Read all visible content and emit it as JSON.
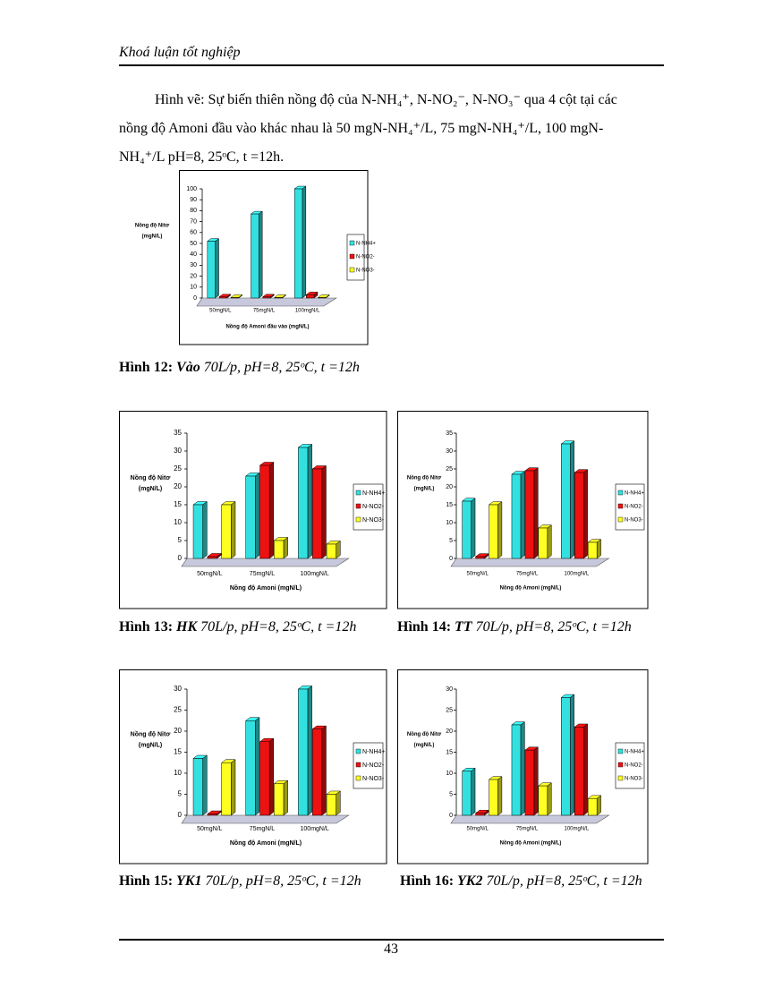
{
  "header": "Khoá luận tốt nghiệp",
  "intro": "Hình vẽ: Sự biến thiên nồng độ của N-NH₄⁺, N-NO₂⁻, N-NO₃⁻ qua 4 cột tại các nồng độ Amoni đầu vào khác nhau là 50 mgN-NH₄⁺/L, 75 mgN-NH₄⁺/L, 100 mgN-NH₄⁺/L pH=8, 25ᵒC, t =12h.",
  "chart_data": [
    {
      "type": "bar",
      "ylabel": [
        "Nồng độ Nitơ",
        "(mgN/L)"
      ],
      "xlabel": "Nồng độ Amoni đầu vào (mgN/L)",
      "categories": [
        "50mgN/L",
        "75mgN/L",
        "100mgN/L"
      ],
      "series": [
        {
          "name": "N-NH4+",
          "color": "#33e0e0",
          "values": [
            52,
            77,
            100
          ]
        },
        {
          "name": "N-NO2-",
          "color": "#ee1111",
          "values": [
            1,
            1,
            3
          ]
        },
        {
          "name": "N-NO3-",
          "color": "#ffff22",
          "values": [
            0.5,
            0.5,
            0.5
          ]
        }
      ],
      "ylim": [
        0,
        100
      ],
      "yticks": [
        0,
        10,
        20,
        30,
        40,
        50,
        60,
        70,
        80,
        90,
        100
      ]
    },
    {
      "type": "bar",
      "ylabel": [
        "Nồng độ Nitơ",
        "(mgN/L)"
      ],
      "xlabel": "Nồng độ Amoni (mgN/L)",
      "categories": [
        "50mgN/L",
        "75mgN/L",
        "100mgN/L"
      ],
      "series": [
        {
          "name": "N-NH4+",
          "color": "#33e0e0",
          "values": [
            15,
            23,
            31
          ]
        },
        {
          "name": "N-NO2-",
          "color": "#ee1111",
          "values": [
            0.5,
            26,
            25
          ]
        },
        {
          "name": "N-NO3-",
          "color": "#ffff22",
          "values": [
            15,
            5,
            4
          ]
        }
      ],
      "ylim": [
        0,
        35
      ],
      "yticks": [
        0,
        5,
        10,
        15,
        20,
        25,
        30,
        35
      ]
    },
    {
      "type": "bar",
      "ylabel": [
        "Nồng độ Nitơ",
        "(mgN/L)"
      ],
      "xlabel": "Nồng độ Amoni (mgN/L)",
      "categories": [
        "50mgN/L",
        "75mgN/L",
        "100mgN/L"
      ],
      "series": [
        {
          "name": "N-NH4+",
          "color": "#33e0e0",
          "values": [
            16,
            23.5,
            32
          ]
        },
        {
          "name": "N-NO2-",
          "color": "#ee1111",
          "values": [
            0.5,
            24.5,
            24
          ]
        },
        {
          "name": "N-NO3-",
          "color": "#ffff22",
          "values": [
            15,
            8.5,
            4.5
          ]
        }
      ],
      "ylim": [
        0,
        35
      ],
      "yticks": [
        0,
        5,
        10,
        15,
        20,
        25,
        30,
        35
      ]
    },
    {
      "type": "bar",
      "ylabel": [
        "Nồng độ Nitơ",
        "(mgN/L)"
      ],
      "xlabel": "Nồng độ Amoni (mgN/L)",
      "categories": [
        "50mgN/L",
        "75mgN/L",
        "100mgN/L"
      ],
      "series": [
        {
          "name": "N-NH4+",
          "color": "#33e0e0",
          "values": [
            13.5,
            22.5,
            30
          ]
        },
        {
          "name": "N-NO2-",
          "color": "#ee1111",
          "values": [
            0.3,
            17.5,
            20.5
          ]
        },
        {
          "name": "N-NO3-",
          "color": "#ffff22",
          "values": [
            12.5,
            7.5,
            5
          ]
        }
      ],
      "ylim": [
        0,
        30
      ],
      "yticks": [
        0,
        5,
        10,
        15,
        20,
        25,
        30
      ]
    },
    {
      "type": "bar",
      "ylabel": [
        "Nồng độ Nitơ",
        "(mgN/L)"
      ],
      "xlabel": "Nồng độ Amoni (mgN/L)",
      "categories": [
        "50mgN/L",
        "75mgN/L",
        "100mgN/L"
      ],
      "series": [
        {
          "name": "N-NH4+",
          "color": "#33e0e0",
          "values": [
            10.5,
            21.5,
            28
          ]
        },
        {
          "name": "N-NO2-",
          "color": "#ee1111",
          "values": [
            0.5,
            15.5,
            21
          ]
        },
        {
          "name": "N-NO3-",
          "color": "#ffff22",
          "values": [
            8.5,
            7,
            4
          ]
        }
      ],
      "ylim": [
        0,
        30
      ],
      "yticks": [
        0,
        5,
        10,
        15,
        20,
        25,
        30
      ]
    }
  ],
  "captions": [
    {
      "label": "Hình 12:",
      "name": "Vào",
      "text": "70L/p, pH=8, 25ᵒC, t =12h"
    },
    {
      "label": "Hình 13:",
      "name": "HK",
      "text": "70L/p, pH=8, 25ᵒC, t =12h"
    },
    {
      "label": "Hình 14:",
      "name": "TT",
      "text": "70L/p, pH=8, 25ᵒC, t =12h"
    },
    {
      "label": "Hình 15:",
      "name": "YK1",
      "text": "70L/p, pH=8, 25ᵒC, t =12h"
    },
    {
      "label": "Hình 16:",
      "name": "YK2",
      "text": "70L/p, pH=8, 25ᵒC, t =12h"
    }
  ],
  "page_number": "43"
}
